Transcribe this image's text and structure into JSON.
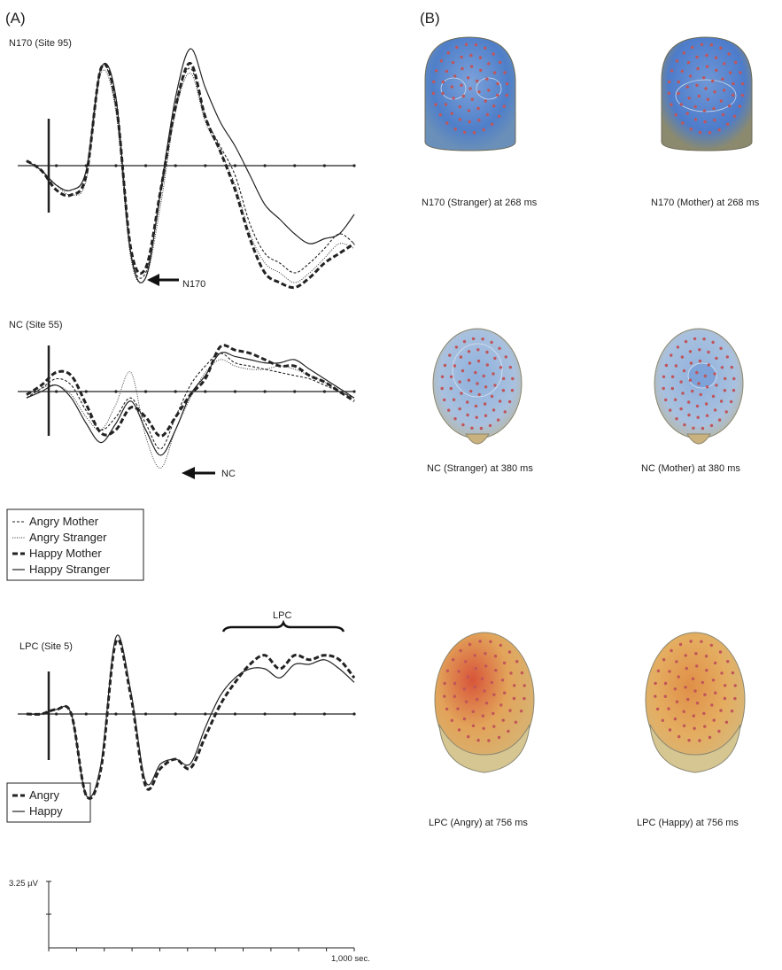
{
  "panel_labels": {
    "a": "(A)",
    "b": "(B)"
  },
  "colors": {
    "blue": "#4f7fc9",
    "lightblue": "#9db8dc",
    "red": "#d8553a",
    "orange": "#e2a45a",
    "skin": "#c9b27e",
    "electrode": "#c0555a",
    "line": "#222222"
  },
  "series_styles": {
    "Angry Mother": "dashed-thin",
    "Angry Stranger": "dotted",
    "Happy Mother": "dashed-thick",
    "Happy Stranger": "solid",
    "Angry": "dashed-thick",
    "Happy": "solid"
  },
  "legend1": {
    "items": [
      "Angry Mother",
      "Angry Stranger",
      "Happy Mother",
      "Happy Stranger"
    ]
  },
  "legend2": {
    "items": [
      "Angry",
      "Happy"
    ]
  },
  "scale": {
    "amplitude": "3.25 µV",
    "time": "1,000 sec."
  },
  "captions": {
    "n170_stranger": "N170 (Stranger) at 268 ms",
    "n170_mother": "N170 (Mother) at 268 ms",
    "nc_stranger": "NC (Stranger) at 380 ms",
    "nc_mother": "NC (Mother) at 380 ms",
    "lpc_angry": "LPC (Angry) at 756 ms",
    "lpc_happy": "LPC (Happy) at 756 ms"
  },
  "chart_data": [
    {
      "type": "line",
      "title": "N170 (Site 95)",
      "annotation": "N170",
      "xlabel": "",
      "ylabel": "",
      "xlim": [
        -100,
        1000
      ],
      "x": [
        -100,
        -50,
        0,
        50,
        100,
        150,
        200,
        250,
        300,
        350,
        400,
        450,
        500,
        550,
        600,
        650,
        700,
        750,
        800,
        850,
        900,
        950,
        1000
      ],
      "series": [
        {
          "name": "Angry Mother",
          "values": [
            1,
            -1,
            -4,
            -5,
            -1,
            20,
            12,
            -18,
            -22,
            -6,
            12,
            20,
            10,
            4,
            -2,
            -12,
            -18,
            -20,
            -22,
            -20,
            -17,
            -14,
            -16
          ]
        },
        {
          "name": "Angry Stranger",
          "values": [
            1,
            -1,
            -4,
            -6,
            -3,
            19,
            11,
            -19,
            -23,
            -8,
            11,
            19,
            9,
            3,
            -4,
            -14,
            -20,
            -22,
            -24,
            -22,
            -19,
            -16,
            -17
          ]
        },
        {
          "name": "Happy Mother",
          "values": [
            1,
            -1,
            -5,
            -6,
            -2,
            20,
            13,
            -17,
            -21,
            -5,
            12,
            21,
            10,
            3,
            -5,
            -15,
            -22,
            -24,
            -25,
            -23,
            -20,
            -18,
            -16
          ]
        },
        {
          "name": "Happy Stranger",
          "values": [
            1,
            -1,
            -4,
            -5,
            -1,
            20,
            14,
            -18,
            -23,
            -5,
            14,
            24,
            16,
            9,
            4,
            -2,
            -8,
            -11,
            -14,
            -16,
            -15,
            -14,
            -10
          ]
        }
      ]
    },
    {
      "type": "line",
      "title": "NC (Site 55)",
      "annotation": "NC",
      "xlabel": "",
      "ylabel": "",
      "xlim": [
        -100,
        1000
      ],
      "x": [
        -100,
        -50,
        0,
        50,
        100,
        150,
        200,
        250,
        300,
        350,
        400,
        450,
        500,
        550,
        600,
        650,
        700,
        750,
        800,
        850,
        900,
        950,
        1000
      ],
      "series": [
        {
          "name": "Angry Mother",
          "values": [
            -2,
            1,
            4,
            2,
            -6,
            -12,
            -8,
            -2,
            -10,
            -18,
            -8,
            2,
            8,
            12,
            9,
            8,
            7,
            6,
            5,
            4,
            2,
            0,
            -2
          ]
        },
        {
          "name": "Angry Stranger",
          "values": [
            -2,
            1,
            2,
            -1,
            -8,
            -12,
            -4,
            6,
            -14,
            -24,
            -12,
            -2,
            6,
            10,
            8,
            7,
            7,
            8,
            7,
            5,
            3,
            0,
            -2
          ]
        },
        {
          "name": "Happy Mother",
          "values": [
            -1,
            2,
            6,
            5,
            -4,
            -13,
            -12,
            -5,
            -8,
            -14,
            -8,
            -1,
            4,
            14,
            13,
            12,
            10,
            8,
            8,
            5,
            3,
            0,
            -3
          ]
        },
        {
          "name": "Happy Stranger",
          "values": [
            -2,
            0,
            2,
            -2,
            -10,
            -16,
            -10,
            -3,
            -12,
            -20,
            -12,
            -1,
            5,
            12,
            11,
            10,
            9,
            9,
            10,
            7,
            4,
            1,
            -2
          ]
        }
      ]
    },
    {
      "type": "line",
      "title": "LPC (Site 5)",
      "annotation": "LPC",
      "xlabel": "",
      "ylabel": "",
      "xlim": [
        -100,
        1000
      ],
      "x": [
        -100,
        -50,
        0,
        50,
        100,
        150,
        200,
        250,
        300,
        350,
        400,
        450,
        500,
        550,
        600,
        650,
        700,
        750,
        800,
        850,
        900,
        950,
        1000
      ],
      "series": [
        {
          "name": "Angry",
          "values": [
            0,
            0,
            1,
            0,
            -18,
            -12,
            16,
            4,
            -16,
            -12,
            -10,
            -12,
            -5,
            2,
            7,
            11,
            13,
            10,
            13,
            12,
            13,
            12,
            8
          ]
        },
        {
          "name": "Happy",
          "values": [
            0,
            0,
            1,
            0,
            -18,
            -11,
            17,
            5,
            -15,
            -11,
            -10,
            -11,
            -3,
            4,
            8,
            10,
            10,
            8,
            11,
            11,
            12,
            10,
            7
          ]
        }
      ]
    }
  ]
}
